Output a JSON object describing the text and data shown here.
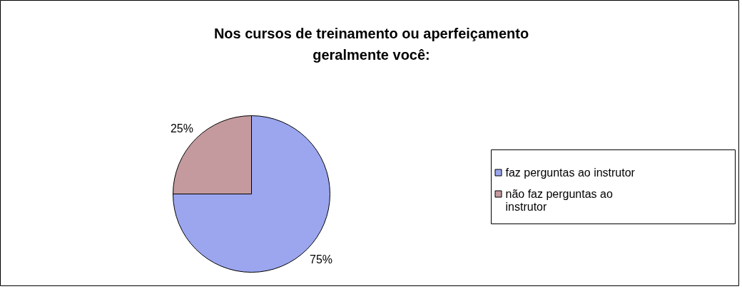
{
  "chart_data": {
    "type": "pie",
    "title": "Nos cursos de treinamento ou aperfeiçamento geralmente você:",
    "categories": [
      "faz perguntas ao instrutor",
      "não faz perguntas ao instrutor"
    ],
    "values": [
      75,
      25
    ],
    "colors": [
      "#9ba6ee",
      "#c49a9e"
    ],
    "value_labels": [
      "75%",
      "25%"
    ],
    "legend": "right"
  }
}
